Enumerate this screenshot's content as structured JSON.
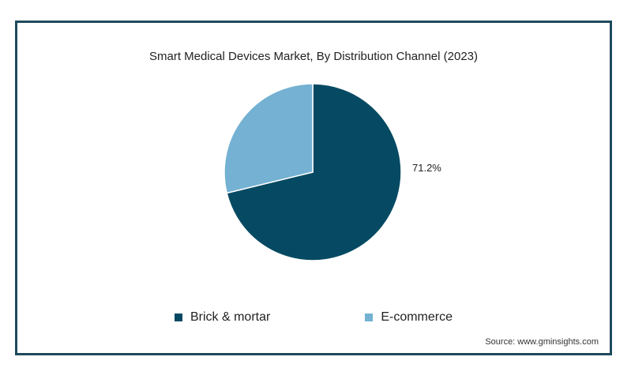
{
  "chart_data": {
    "type": "pie",
    "title": "Smart Medical Devices Market, By Distribution Channel (2023)",
    "slices": [
      {
        "name": "Brick & mortar",
        "value": 71.2,
        "label": "71.2%",
        "color": "#054a62"
      },
      {
        "name": "E-commerce",
        "value": 28.8,
        "label": "",
        "color": "#74b1d2"
      }
    ],
    "legend_position": "bottom",
    "source": "Source: www.gminsights.com"
  }
}
